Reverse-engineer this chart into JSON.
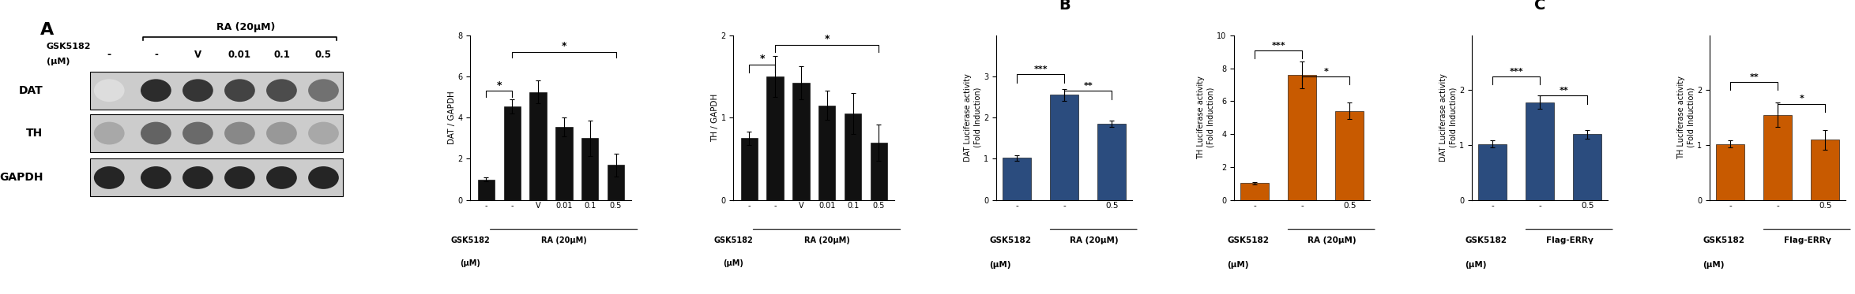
{
  "panel_A_label": "A",
  "panel_B_label": "B",
  "panel_C_label": "C",
  "wb_header_gsk": "GSK5182",
  "wb_header_um": "(μM)",
  "wb_ra_label": "RA (20μM)",
  "wb_cols": [
    "-",
    "-",
    "V",
    "0.01",
    "0.1",
    "0.5"
  ],
  "wb_rows": [
    "DAT",
    "TH",
    "GAPDH"
  ],
  "bar_A_DAT_xticks": [
    "-",
    "-",
    "V",
    "0.01",
    "0.1",
    "0.5"
  ],
  "bar_A_DAT_xlabel1": "GSK5182",
  "bar_A_DAT_xlabel2": "(μM)",
  "bar_A_DAT_xunder": "RA (20μM)",
  "bar_A_DAT_ylabel": "DAT / GAPDH",
  "bar_A_DAT_values": [
    1.0,
    4.55,
    5.25,
    3.55,
    3.0,
    1.7
  ],
  "bar_A_DAT_errors": [
    0.08,
    0.35,
    0.55,
    0.45,
    0.85,
    0.55
  ],
  "bar_A_DAT_ylim": [
    0,
    8
  ],
  "bar_A_DAT_yticks": [
    0,
    2,
    4,
    6,
    8
  ],
  "bar_A_TH_xticks": [
    "-",
    "-",
    "V",
    "0.01",
    "0.1",
    "0.5"
  ],
  "bar_A_TH_xlabel1": "GSK5182",
  "bar_A_TH_xlabel2": "(μM)",
  "bar_A_TH_xunder": "RA (20μM)",
  "bar_A_TH_ylabel": "TH / GAPDH",
  "bar_A_TH_values": [
    0.75,
    1.5,
    1.42,
    1.15,
    1.05,
    0.7
  ],
  "bar_A_TH_errors": [
    0.08,
    0.25,
    0.2,
    0.18,
    0.25,
    0.22
  ],
  "bar_A_TH_ylim": [
    0,
    2
  ],
  "bar_A_TH_yticks": [
    0,
    1,
    2
  ],
  "bar_B_DAT_ylabel": "DAT Luciferase activity\n(Fold Induction)",
  "bar_B_DAT_values": [
    1.02,
    2.55,
    1.85
  ],
  "bar_B_DAT_errors": [
    0.06,
    0.15,
    0.08
  ],
  "bar_B_DAT_ylim": [
    0,
    4
  ],
  "bar_B_DAT_yticks": [
    0,
    1,
    2,
    3
  ],
  "bar_B_DAT_xticks": [
    "-",
    "-",
    "0.5"
  ],
  "bar_B_DAT_xlabel1": "GSK5182",
  "bar_B_DAT_xlabel2": "(μM)",
  "bar_B_DAT_xunder": "RA (20μM)",
  "bar_B_DAT_color": "#2B4C7E",
  "bar_B_TH_ylabel": "TH Luciferase activity\n(Fold Induction)",
  "bar_B_TH_values": [
    1.02,
    7.6,
    5.4
  ],
  "bar_B_TH_errors": [
    0.08,
    0.8,
    0.5
  ],
  "bar_B_TH_ylim": [
    0,
    10
  ],
  "bar_B_TH_yticks": [
    0,
    2,
    4,
    6,
    8,
    10
  ],
  "bar_B_TH_xticks": [
    "-",
    "-",
    "0.5"
  ],
  "bar_B_TH_xlabel1": "GSK5182",
  "bar_B_TH_xlabel2": "(μM)",
  "bar_B_TH_xunder": "RA (20μM)",
  "bar_B_TH_color": "#C85A00",
  "bar_C_DAT_ylabel": "DAT Luciferase activity\n(Fold Induction)",
  "bar_C_DAT_values": [
    1.02,
    1.78,
    1.2
  ],
  "bar_C_DAT_errors": [
    0.06,
    0.12,
    0.08
  ],
  "bar_C_DAT_ylim": [
    0,
    3
  ],
  "bar_C_DAT_yticks": [
    0,
    1,
    2
  ],
  "bar_C_DAT_xticks": [
    "-",
    "-",
    "0.5"
  ],
  "bar_C_DAT_xlabel1": "GSK5182",
  "bar_C_DAT_xlabel2": "(μM)",
  "bar_C_DAT_xunder": "Flag-ERRγ",
  "bar_C_DAT_color": "#2B4C7E",
  "bar_C_TH_ylabel": "TH Luciferase activity\n(Fold Induction)",
  "bar_C_TH_values": [
    1.02,
    1.55,
    1.1
  ],
  "bar_C_TH_errors": [
    0.07,
    0.22,
    0.18
  ],
  "bar_C_TH_ylim": [
    0,
    3
  ],
  "bar_C_TH_yticks": [
    0,
    1,
    2
  ],
  "bar_C_TH_xticks": [
    "-",
    "-",
    "0.5"
  ],
  "bar_C_TH_xlabel1": "GSK5182",
  "bar_C_TH_xlabel2": "(μM)",
  "bar_C_TH_xunder": "Flag-ERRγ",
  "bar_C_TH_color": "#C85A00",
  "bar_color_black": "#111111"
}
